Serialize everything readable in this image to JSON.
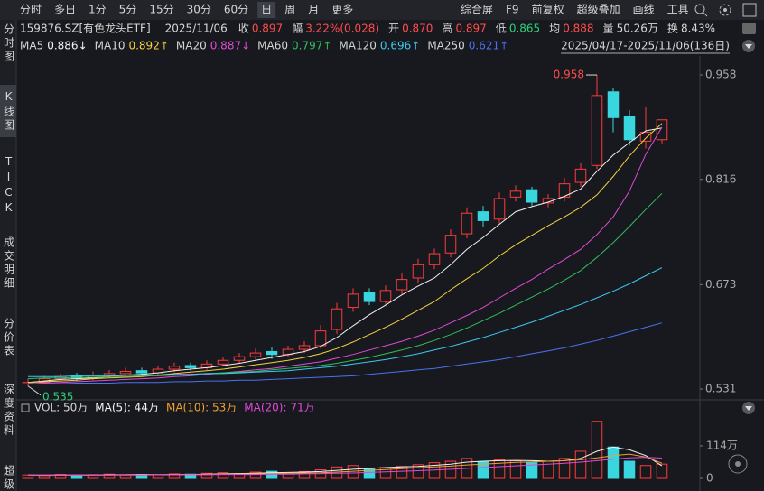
{
  "toolbar": {
    "periods": [
      "分时",
      "多日",
      "1分",
      "5分",
      "15分",
      "30分",
      "60分",
      "日",
      "周",
      "月",
      "更多"
    ],
    "active": 7,
    "tools": [
      "综合屏",
      "F9",
      "前复权",
      "超级叠加",
      "画线",
      "工具"
    ]
  },
  "sidebar": [
    "分时图",
    "K线图",
    "TICK",
    "成交明细",
    "分价表",
    "深度资料",
    "超级"
  ],
  "sidebar_active": 1,
  "quote": {
    "symbol": "159876.SZ[有色龙头ETF]",
    "date": "2025/11/06",
    "items": [
      {
        "label": "收",
        "value": "0.897",
        "color": "#ff4d4d"
      },
      {
        "label": "幅",
        "value": "3.22%(0.028)",
        "color": "#ff4d4d"
      },
      {
        "label": "开",
        "value": "0.870",
        "color": "#ff4d4d"
      },
      {
        "label": "高",
        "value": "0.897",
        "color": "#ff4d4d"
      },
      {
        "label": "低",
        "value": "0.865",
        "color": "#2fd07a"
      },
      {
        "label": "均",
        "value": "0.888",
        "color": "#ff4d4d"
      },
      {
        "label": "量",
        "value": "50.26万",
        "color": "#d6d6d6"
      },
      {
        "label": "换",
        "value": "8.43%",
        "color": "#d6d6d6"
      }
    ]
  },
  "range": "2025/04/17-2025/11/06(136日)",
  "chart_data": [
    {
      "type": "candlestick",
      "ylim": [
        0.52,
        0.974
      ],
      "yticks": [
        0.531,
        0.673,
        0.816,
        0.958
      ],
      "annotations": [
        {
          "text": "0.958",
          "index": 35
        },
        {
          "text": "0.535",
          "index": 0
        }
      ],
      "up_color": "#ff3b3b",
      "down_color": "#3ad6e0",
      "open": [
        0.538,
        0.54,
        0.545,
        0.549,
        0.546,
        0.55,
        0.552,
        0.556,
        0.553,
        0.558,
        0.563,
        0.56,
        0.565,
        0.57,
        0.575,
        0.582,
        0.578,
        0.585,
        0.59,
        0.612,
        0.642,
        0.662,
        0.65,
        0.666,
        0.682,
        0.7,
        0.716,
        0.742,
        0.772,
        0.762,
        0.792,
        0.802,
        0.784,
        0.792,
        0.812,
        0.835,
        0.935,
        0.902,
        0.868,
        0.87
      ],
      "high": [
        0.545,
        0.549,
        0.552,
        0.553,
        0.555,
        0.557,
        0.56,
        0.56,
        0.563,
        0.567,
        0.567,
        0.57,
        0.575,
        0.58,
        0.586,
        0.588,
        0.59,
        0.596,
        0.618,
        0.648,
        0.668,
        0.668,
        0.672,
        0.688,
        0.708,
        0.722,
        0.748,
        0.778,
        0.78,
        0.798,
        0.808,
        0.806,
        0.796,
        0.818,
        0.838,
        0.958,
        0.94,
        0.91,
        0.915,
        0.897
      ],
      "low": [
        0.535,
        0.537,
        0.542,
        0.542,
        0.543,
        0.546,
        0.549,
        0.549,
        0.55,
        0.554,
        0.556,
        0.557,
        0.562,
        0.566,
        0.571,
        0.572,
        0.575,
        0.58,
        0.586,
        0.606,
        0.636,
        0.645,
        0.645,
        0.66,
        0.676,
        0.694,
        0.71,
        0.736,
        0.752,
        0.756,
        0.786,
        0.78,
        0.778,
        0.786,
        0.806,
        0.83,
        0.88,
        0.862,
        0.858,
        0.865
      ],
      "close": [
        0.54,
        0.545,
        0.548,
        0.546,
        0.55,
        0.552,
        0.555,
        0.553,
        0.558,
        0.562,
        0.56,
        0.565,
        0.57,
        0.575,
        0.58,
        0.578,
        0.585,
        0.59,
        0.61,
        0.64,
        0.66,
        0.65,
        0.665,
        0.68,
        0.7,
        0.715,
        0.74,
        0.77,
        0.76,
        0.79,
        0.8,
        0.785,
        0.79,
        0.81,
        0.83,
        0.93,
        0.9,
        0.87,
        0.88,
        0.897
      ],
      "ma": [
        {
          "name": "MA5",
          "value_label": "0.886",
          "trend": "↓",
          "color": "#f2f2f2",
          "values": [
            0.54,
            0.542,
            0.544,
            0.545,
            0.546,
            0.548,
            0.55,
            0.551,
            0.553,
            0.556,
            0.558,
            0.56,
            0.563,
            0.566,
            0.57,
            0.574,
            0.578,
            0.582,
            0.589,
            0.601,
            0.617,
            0.632,
            0.645,
            0.659,
            0.671,
            0.682,
            0.7,
            0.721,
            0.737,
            0.755,
            0.772,
            0.779,
            0.785,
            0.793,
            0.803,
            0.827,
            0.849,
            0.866,
            0.882,
            0.886
          ]
        },
        {
          "name": "MA10",
          "value_label": "0.892",
          "trend": "↑",
          "color": "#f5d142",
          "values": [
            0.54,
            0.541,
            0.542,
            0.543,
            0.545,
            0.546,
            0.547,
            0.548,
            0.55,
            0.552,
            0.554,
            0.556,
            0.558,
            0.561,
            0.564,
            0.567,
            0.57,
            0.574,
            0.579,
            0.586,
            0.595,
            0.605,
            0.615,
            0.626,
            0.638,
            0.65,
            0.666,
            0.681,
            0.695,
            0.712,
            0.727,
            0.74,
            0.753,
            0.765,
            0.778,
            0.795,
            0.82,
            0.848,
            0.872,
            0.892
          ]
        },
        {
          "name": "MA20",
          "value_label": "0.887",
          "trend": "↓",
          "color": "#e04ad8",
          "values": [
            0.538,
            0.539,
            0.54,
            0.541,
            0.542,
            0.543,
            0.544,
            0.545,
            0.546,
            0.548,
            0.549,
            0.551,
            0.553,
            0.555,
            0.557,
            0.559,
            0.562,
            0.565,
            0.568,
            0.573,
            0.578,
            0.584,
            0.59,
            0.596,
            0.603,
            0.611,
            0.621,
            0.631,
            0.642,
            0.655,
            0.668,
            0.68,
            0.694,
            0.707,
            0.721,
            0.741,
            0.765,
            0.8,
            0.85,
            0.887
          ]
        },
        {
          "name": "MA60",
          "value_label": "0.797",
          "trend": "↑",
          "color": "#2fc05a",
          "values": [
            0.545,
            0.546,
            0.546,
            0.547,
            0.547,
            0.548,
            0.548,
            0.549,
            0.549,
            0.55,
            0.551,
            0.552,
            0.553,
            0.554,
            0.555,
            0.557,
            0.559,
            0.561,
            0.563,
            0.566,
            0.57,
            0.574,
            0.579,
            0.584,
            0.59,
            0.597,
            0.605,
            0.614,
            0.624,
            0.634,
            0.645,
            0.656,
            0.667,
            0.679,
            0.692,
            0.71,
            0.73,
            0.752,
            0.775,
            0.797
          ]
        },
        {
          "name": "MA120",
          "value_label": "0.696",
          "trend": "↑",
          "color": "#3cc8f0",
          "values": [
            0.548,
            0.548,
            0.548,
            0.549,
            0.549,
            0.549,
            0.55,
            0.55,
            0.55,
            0.551,
            0.551,
            0.552,
            0.552,
            0.553,
            0.554,
            0.555,
            0.556,
            0.558,
            0.56,
            0.562,
            0.565,
            0.568,
            0.571,
            0.575,
            0.579,
            0.584,
            0.589,
            0.595,
            0.601,
            0.608,
            0.615,
            0.622,
            0.63,
            0.638,
            0.646,
            0.655,
            0.664,
            0.674,
            0.685,
            0.696
          ]
        },
        {
          "name": "MA250",
          "value_label": "0.621",
          "trend": "↑",
          "color": "#4a72f0",
          "values": [
            0.538,
            0.538,
            0.538,
            0.539,
            0.539,
            0.539,
            0.54,
            0.54,
            0.54,
            0.541,
            0.541,
            0.542,
            0.542,
            0.543,
            0.543,
            0.544,
            0.545,
            0.546,
            0.547,
            0.548,
            0.549,
            0.551,
            0.553,
            0.555,
            0.557,
            0.559,
            0.562,
            0.565,
            0.568,
            0.571,
            0.575,
            0.579,
            0.583,
            0.587,
            0.592,
            0.597,
            0.603,
            0.609,
            0.615,
            0.621
          ]
        }
      ]
    },
    {
      "type": "bar",
      "ylim": [
        0,
        215
      ],
      "yticks": [
        {
          "value": 114,
          "label": "114万"
        },
        0
      ],
      "volume": {
        "label": "VOL: 50万",
        "color": "#d6d6d6",
        "values": [
          12,
          10,
          14,
          11,
          13,
          15,
          12,
          14,
          13,
          16,
          15,
          18,
          20,
          17,
          22,
          25,
          20,
          24,
          30,
          40,
          45,
          35,
          38,
          42,
          48,
          55,
          60,
          70,
          58,
          65,
          62,
          55,
          60,
          70,
          95,
          200,
          110,
          60,
          45,
          50
        ]
      },
      "series": [
        {
          "label": "MA(5): 44万",
          "color": "#f2f2f2",
          "values": [
            12,
            11,
            12,
            12,
            12,
            13,
            13,
            14,
            13,
            14,
            14,
            15,
            16,
            17,
            18,
            20,
            21,
            22,
            24,
            28,
            32,
            35,
            38,
            40,
            42,
            46,
            50,
            57,
            60,
            62,
            63,
            62,
            60,
            62,
            70,
            95,
            110,
            100,
            80,
            44
          ]
        },
        {
          "label": "MA(10): 53万",
          "color": "#f0a030",
          "values": [
            12,
            12,
            12,
            12,
            12,
            12,
            13,
            13,
            13,
            13,
            14,
            14,
            15,
            15,
            16,
            17,
            18,
            19,
            20,
            22,
            25,
            28,
            31,
            34,
            37,
            40,
            43,
            47,
            50,
            53,
            56,
            58,
            60,
            62,
            65,
            72,
            80,
            85,
            75,
            53
          ]
        },
        {
          "label": "MA(20): 71万",
          "color": "#e04ad8",
          "values": [
            12,
            12,
            12,
            12,
            12,
            12,
            12,
            12,
            13,
            13,
            13,
            13,
            14,
            14,
            14,
            15,
            15,
            16,
            17,
            18,
            19,
            21,
            23,
            25,
            27,
            29,
            32,
            35,
            38,
            41,
            44,
            47,
            50,
            53,
            57,
            62,
            67,
            72,
            74,
            71
          ]
        }
      ]
    }
  ]
}
